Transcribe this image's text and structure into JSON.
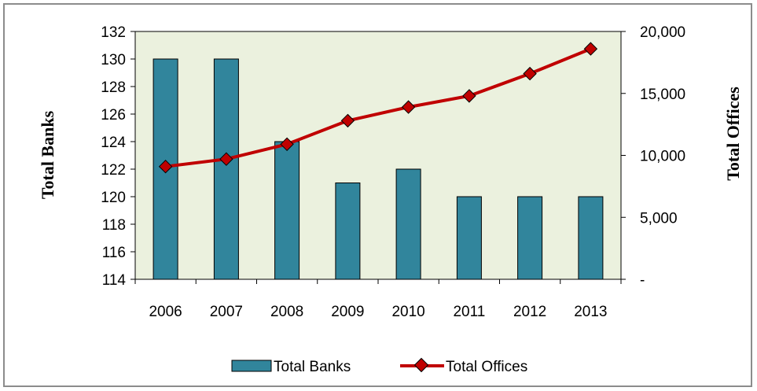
{
  "chart_data": {
    "type": "bar",
    "categories": [
      "2006",
      "2007",
      "2008",
      "2009",
      "2010",
      "2011",
      "2012",
      "2013"
    ],
    "series": [
      {
        "name": "Total Banks",
        "type": "bar",
        "axis": "left",
        "values": [
          130,
          130,
          124,
          121,
          122,
          120,
          120,
          120
        ]
      },
      {
        "name": "Total Offices",
        "type": "line",
        "axis": "right",
        "values": [
          9100,
          9700,
          10900,
          12800,
          13900,
          14800,
          16600,
          18600
        ]
      }
    ],
    "y_left": {
      "label": "Total Banks",
      "ylim": [
        114,
        132
      ],
      "ticks": [
        "114",
        "116",
        "118",
        "120",
        "122",
        "124",
        "126",
        "128",
        "130",
        "132"
      ]
    },
    "y_right": {
      "label": "Total Offices",
      "ylim": [
        0,
        20000
      ],
      "ticks": [
        "-",
        "5,000",
        "10,000",
        "15,000",
        "20,000"
      ]
    },
    "legend": {
      "position": "bottom",
      "items": [
        "Total Banks",
        "Total Offices"
      ]
    },
    "colors": {
      "bar": "#31859c",
      "line": "#c00000",
      "marker": "#c00000",
      "plot_background": "#ebf1de"
    },
    "grid": false
  }
}
